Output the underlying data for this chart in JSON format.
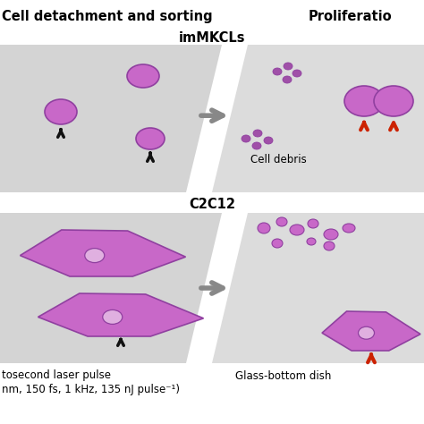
{
  "bg_color": "#ffffff",
  "panel_bg": "#d4d4d4",
  "panel_bg_right": "#dcdcdc",
  "cell_color": "#c868c8",
  "cell_edge": "#9040a0",
  "cell_color_dark": "#a050a8",
  "title_left": "Cell detachment and sorting",
  "title_right": "Proliferatio",
  "label_immkcls": "imMKCLs",
  "label_c2c12": "C2C12",
  "label_debris": "Cell debris",
  "label_laser": "tosecond laser pulse",
  "label_laser2": "nm, 150 fs, 1 kHz, 135 nJ pulse⁻¹)",
  "label_dish": "Glass-bottom dish",
  "arrow_black": "#111111",
  "arrow_red": "#cc2200",
  "arrow_gray": "#888888"
}
